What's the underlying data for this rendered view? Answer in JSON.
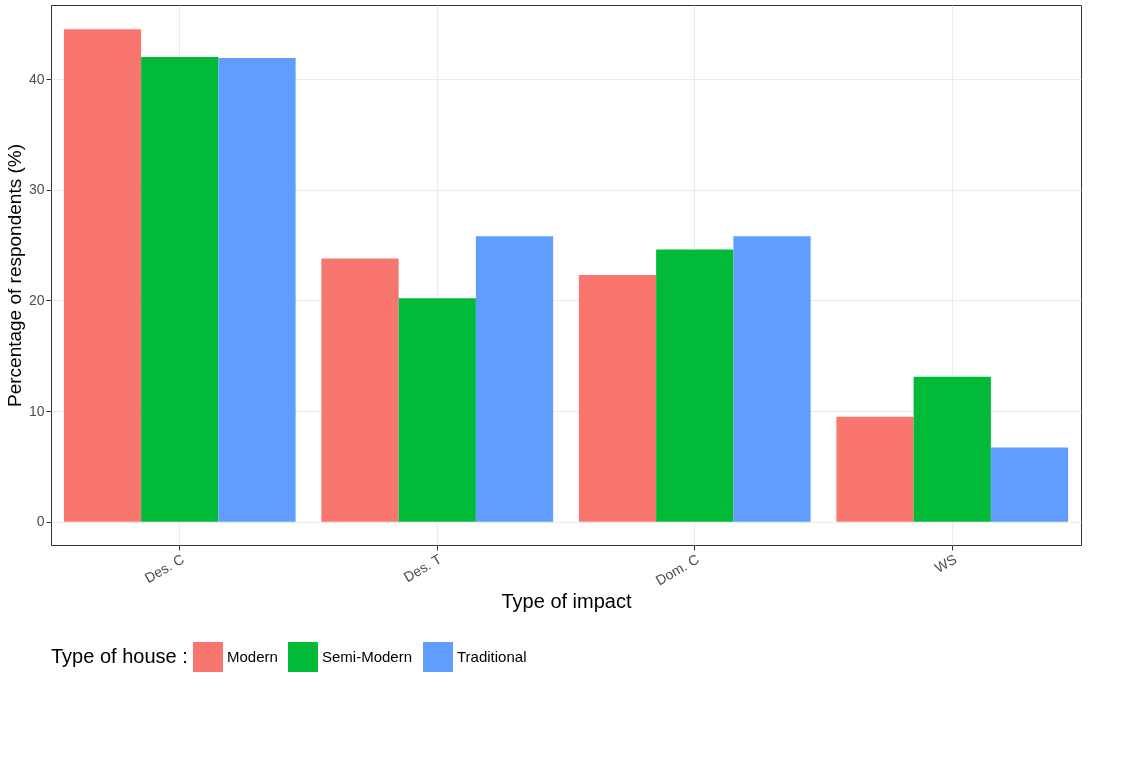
{
  "chart_data": {
    "type": "bar",
    "xlabel": "Type of impact",
    "ylabel": "Percentage of respondents (%)",
    "legend_title": "Type of house :",
    "categories": [
      "Des. C",
      "Des. T",
      "Dom. C",
      "WS"
    ],
    "series": [
      {
        "name": "Modern",
        "color": "#f8766d",
        "values": [
          44.5,
          23.8,
          22.3,
          9.5
        ]
      },
      {
        "name": "Semi-Modern",
        "color": "#00ba38",
        "values": [
          42.0,
          20.2,
          24.6,
          13.1
        ]
      },
      {
        "name": "Traditional",
        "color": "#619cff",
        "values": [
          41.9,
          25.8,
          25.8,
          6.7
        ]
      }
    ],
    "ylim": [
      -2.1,
      46.7
    ],
    "yticks": [
      0,
      10,
      20,
      30,
      40
    ],
    "grid": true,
    "legend": "bottom"
  }
}
